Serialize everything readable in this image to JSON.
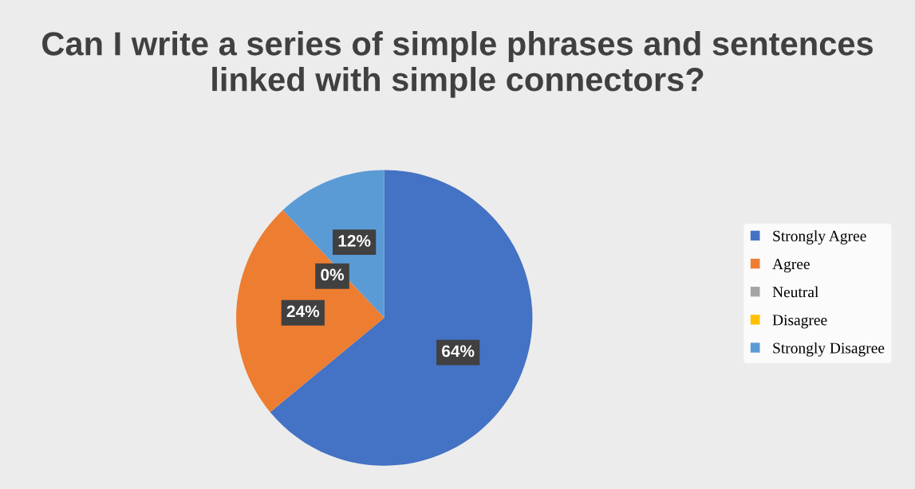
{
  "chart_data": {
    "type": "pie",
    "title": "Can I write a series of simple phrases and sentences linked with simple connectors?",
    "categories": [
      "Strongly Agree",
      "Agree",
      "Neutral",
      "Disagree",
      "Strongly Disagree"
    ],
    "values": [
      64,
      24,
      0,
      0,
      12
    ],
    "colors": [
      "#4472c4",
      "#ed7d31",
      "#a5a5a5",
      "#ffc000",
      "#5b9bd5"
    ],
    "value_labels": [
      "64%",
      "24%",
      "0%",
      null,
      "12%"
    ],
    "legend": "right"
  }
}
